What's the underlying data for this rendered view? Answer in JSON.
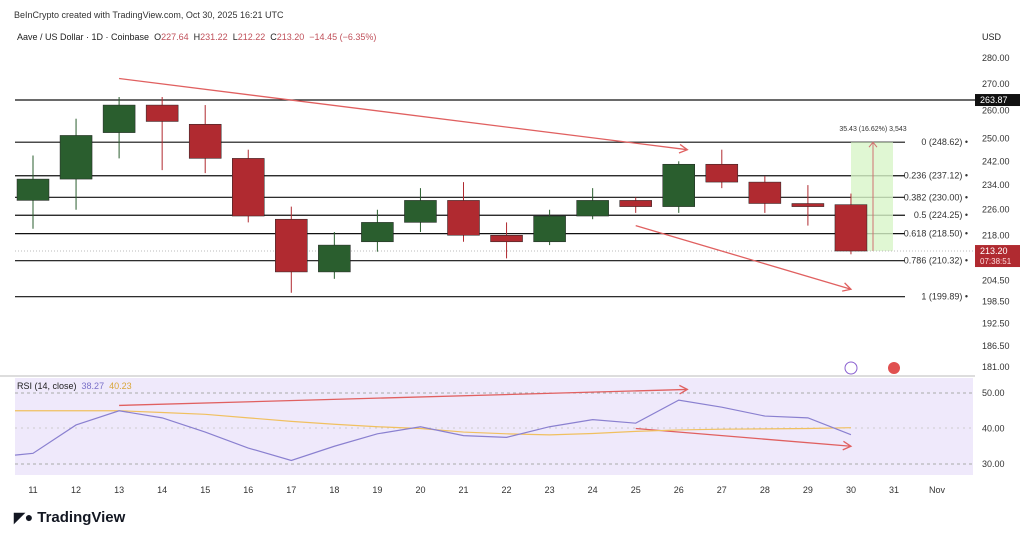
{
  "header": {
    "credit": "BeInCrypto created with TradingView.com, Oct 30, 2025 16:21 UTC",
    "symbol": "Aave / US Dollar · 1D · Coinbase",
    "o_label": "O",
    "o": "227.64",
    "h_label": "H",
    "h": "231.22",
    "l_label": "L",
    "l": "212.22",
    "c_label": "C",
    "c": "213.20",
    "change": "−14.45 (−6.35%)"
  },
  "currency": "USD",
  "logo": "TradingView",
  "colors": {
    "up": "#2a5e2e",
    "down": "#b02a30",
    "annot": "#e06060",
    "rsi": "#8a80d0",
    "ma": "#f0c060",
    "rsi_bg": "#efe9fb"
  },
  "chart_data": {
    "type": "candlestick",
    "title": "Aave / US Dollar · 1D · Coinbase",
    "x": [
      "11",
      "12",
      "13",
      "14",
      "15",
      "16",
      "17",
      "18",
      "19",
      "20",
      "21",
      "22",
      "23",
      "24",
      "25",
      "26",
      "27",
      "28",
      "29",
      "30"
    ],
    "x_ticks": [
      "11",
      "12",
      "13",
      "14",
      "15",
      "16",
      "17",
      "18",
      "19",
      "20",
      "21",
      "22",
      "23",
      "24",
      "25",
      "26",
      "27",
      "28",
      "29",
      "30",
      "31",
      "Nov"
    ],
    "ohlc": [
      [
        229,
        244,
        220,
        236
      ],
      [
        236,
        257,
        226,
        251
      ],
      [
        252,
        265,
        243,
        262
      ],
      [
        262,
        265,
        239,
        256
      ],
      [
        255,
        262,
        238,
        243
      ],
      [
        243,
        246,
        222,
        224
      ],
      [
        223,
        227,
        201,
        207
      ],
      [
        207,
        219,
        205,
        215
      ],
      [
        216,
        226,
        213,
        222
      ],
      [
        222,
        233,
        219,
        229
      ],
      [
        229,
        235,
        216,
        218
      ],
      [
        218,
        222,
        211,
        216
      ],
      [
        216,
        226,
        215,
        224
      ],
      [
        224,
        233,
        223,
        229
      ],
      [
        229,
        230,
        225,
        227
      ],
      [
        227,
        242,
        225,
        241
      ],
      [
        241,
        246,
        233,
        235
      ],
      [
        235,
        237,
        225,
        228
      ],
      [
        228,
        234,
        221,
        227
      ],
      [
        227.64,
        231.22,
        212.22,
        213.2
      ]
    ],
    "y_ticks": [
      "280.00",
      "270.00",
      "260.00",
      "250.00",
      "242.00",
      "234.00",
      "226.00",
      "218.00",
      "204.50",
      "198.50",
      "192.50",
      "186.50",
      "181.00"
    ],
    "y_tick_values": [
      280,
      270,
      260,
      250,
      242,
      234,
      226,
      218,
      204.5,
      198.5,
      192.5,
      186.5,
      181
    ],
    "ylim": [
      181,
      280
    ],
    "scale": "log",
    "resistance": {
      "value": 263.87,
      "label": "263.87"
    },
    "last_price": {
      "label": "213.20",
      "countdown": "07:38:51"
    },
    "fib_levels": [
      {
        "value": 248.62,
        "label": "0 (248.62)"
      },
      {
        "value": 237.12,
        "label": "0.236 (237.12)"
      },
      {
        "value": 230.0,
        "label": "0.382 (230.00)"
      },
      {
        "value": 224.25,
        "label": "0.5 (224.25)"
      },
      {
        "value": 218.5,
        "label": "0.618 (218.50)"
      },
      {
        "value": 210.32,
        "label": "0.786 (210.32)"
      },
      {
        "value": 199.89,
        "label": "1 (199.89)"
      }
    ],
    "position_label": "35.43 (16.62%) 3,543",
    "trend_lines": [
      {
        "from": [
          "13",
          272
        ],
        "to": [
          "26.2",
          246
        ]
      },
      {
        "from": [
          "25",
          221
        ],
        "to": [
          "30",
          202
        ]
      }
    ],
    "rsi": {
      "label": "RSI (14, close)",
      "value": "38.27",
      "ma_value": "40.23",
      "ylim": [
        25,
        54
      ],
      "y_ticks": [
        "50.00",
        "40.00",
        "30.00"
      ],
      "y_tick_values": [
        50,
        40,
        30
      ],
      "values": [
        33,
        41,
        45,
        43,
        39,
        34.5,
        31,
        35,
        38.5,
        40.5,
        38,
        37.5,
        40.5,
        42.5,
        41.5,
        48,
        46,
        43.5,
        43,
        38.27
      ],
      "ma": [
        45,
        45,
        45,
        44.5,
        44,
        43,
        42,
        41.2,
        40.5,
        40,
        39,
        38.5,
        38.2,
        38.6,
        39.2,
        39.6,
        39.8,
        39.9,
        40,
        40.23
      ],
      "trend_lines": [
        {
          "from": [
            "13",
            46.5
          ],
          "to": [
            "26.2",
            51
          ]
        },
        {
          "from": [
            "25",
            40
          ],
          "to": [
            "30",
            35
          ]
        }
      ]
    }
  }
}
